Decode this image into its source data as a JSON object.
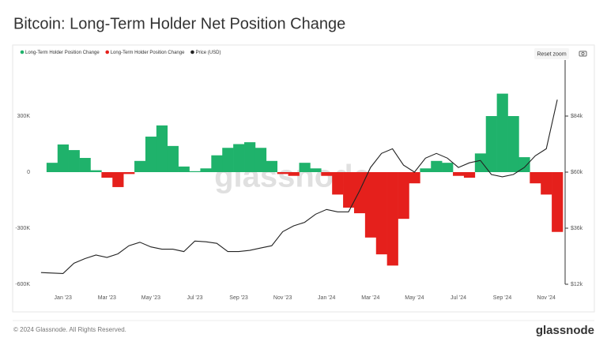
{
  "chart_data": {
    "type": "bar",
    "title": "Bitcoin: Long-Term Holder Net Position Change",
    "reset_zoom": "Reset zoom",
    "watermark": "glassnode",
    "footer": "© 2024 Glassnode. All Rights Reserved.",
    "brand": "glassnode",
    "categories": [
      null,
      null,
      "Jan '23",
      null,
      null,
      null,
      "Mar '23",
      null,
      null,
      null,
      "May '23",
      null,
      null,
      null,
      "Jul '23",
      null,
      null,
      null,
      "Sep '23",
      null,
      null,
      null,
      "Nov '23",
      null,
      null,
      null,
      "Jan '24",
      null,
      null,
      null,
      "Mar '24",
      null,
      null,
      null,
      "May '24",
      null,
      null,
      null,
      "Jul '24",
      null,
      null,
      null,
      "Sep '24",
      null,
      null,
      null,
      "Nov '24",
      null
    ],
    "series": [
      {
        "name": "Long-Term Holder Position Change",
        "color": "#1fb26b",
        "values": [
          0,
          50000,
          148000,
          118000,
          76000,
          10000,
          null,
          null,
          null,
          60000,
          190000,
          250000,
          140000,
          30000,
          5000,
          20000,
          90000,
          130000,
          150000,
          160000,
          130000,
          60000,
          null,
          null,
          50000,
          20000,
          null,
          null,
          null,
          null,
          null,
          null,
          null,
          null,
          null,
          20000,
          60000,
          50000,
          null,
          null,
          100000,
          300000,
          420000,
          300000,
          80000,
          null,
          null,
          null
        ]
      },
      {
        "name": "Long-Term Holder Position Change",
        "color": "#e5201c",
        "values": [
          null,
          null,
          null,
          null,
          null,
          null,
          -30000,
          -80000,
          -10000,
          null,
          null,
          null,
          null,
          null,
          null,
          null,
          null,
          null,
          null,
          null,
          null,
          null,
          -10000,
          -20000,
          null,
          null,
          -20000,
          -120000,
          -190000,
          -220000,
          -350000,
          -440000,
          -500000,
          -250000,
          -60000,
          null,
          null,
          null,
          -20000,
          -30000,
          null,
          null,
          null,
          null,
          null,
          -60000,
          -120000,
          -320000
        ]
      },
      {
        "name": "Price (USD)",
        "color": "#222222",
        "type": "line",
        "axis": "y2",
        "values": [
          17000,
          16800,
          16600,
          21000,
          23000,
          24500,
          23500,
          25000,
          28500,
          30000,
          28000,
          27000,
          27000,
          26000,
          30500,
          30200,
          29500,
          26000,
          26000,
          26500,
          27500,
          28500,
          34500,
          37000,
          38500,
          42000,
          44000,
          43000,
          43000,
          52000,
          62000,
          68000,
          70000,
          63000,
          60000,
          66000,
          68000,
          66000,
          62000,
          64000,
          65000,
          59000,
          58000,
          59000,
          62000,
          67000,
          70000,
          91000
        ]
      }
    ],
    "ylim": [
      -600000,
      600000
    ],
    "yticks": [
      {
        "value": 300000,
        "label": "300K"
      },
      0,
      {
        "value": -300000,
        "label": "-300K"
      },
      {
        "value": -600000,
        "label": "-600K"
      }
    ],
    "y2lim": [
      12000,
      108000
    ],
    "y2ticks": [
      {
        "value": 84000,
        "label": "$84k"
      },
      {
        "value": 60000,
        "label": "$60k"
      },
      {
        "value": 36000,
        "label": "$36k"
      },
      {
        "value": 12000,
        "label": "$12k"
      }
    ]
  }
}
